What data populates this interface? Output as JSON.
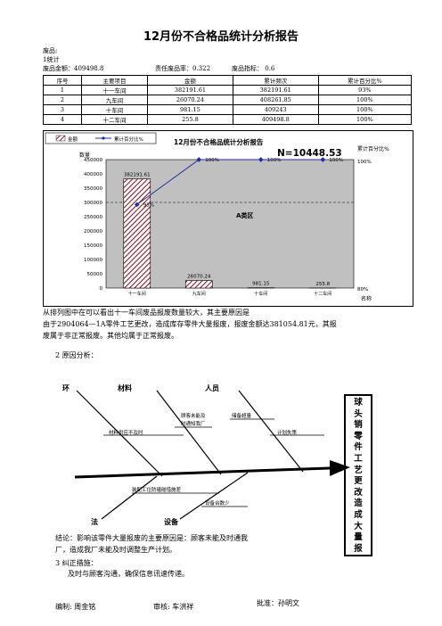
{
  "title": "12月份不合格品统计分析报告",
  "meta": {
    "line1": "废品:",
    "line2": "1统计",
    "total": "废品金额：409498.8",
    "rate": "责任废品率：0.322",
    "target": "废品指标： 0.6"
  },
  "table": {
    "headers": [
      "序号",
      "主要项目",
      "金额",
      "累计频次",
      "累计百分比%"
    ],
    "rows": [
      [
        "1",
        "十一车间",
        "382191.61",
        "382191.61",
        "93%"
      ],
      [
        "2",
        "九车间",
        "26070.24",
        "408261.85",
        "100%"
      ],
      [
        "3",
        "十车间",
        "981.15",
        "409243",
        "100%"
      ],
      [
        "4",
        "十二车间",
        "255.8",
        "409498.8",
        "100%"
      ]
    ]
  },
  "chart_data": {
    "type": "bar",
    "title": "12月份不合格品统计分析报告",
    "n_label": "N=10448.53",
    "legend": [
      "金额",
      "累计百分比%"
    ],
    "ylabel": "数量",
    "y2label": "累计百分比%",
    "xlabel": "名称",
    "zone_label": "A类区",
    "categories": [
      "十一车间",
      "九车间",
      "十车间",
      "十二车间"
    ],
    "ylim": [
      0,
      450000
    ],
    "yticks": [
      0,
      50000,
      100000,
      150000,
      200000,
      250000,
      300000,
      350000,
      400000,
      450000
    ],
    "y2ticks": [
      "80%",
      "100%"
    ],
    "series": [
      {
        "name": "金额",
        "values": [
          382191.61,
          26070.24,
          981.15,
          255.8
        ],
        "labels": [
          "382191.61",
          "26070.24",
          "981.15",
          "255.8"
        ]
      },
      {
        "name": "累计百分比%",
        "values": [
          93,
          100,
          100,
          100
        ],
        "labels": [
          "93%",
          "100%",
          "100%",
          "100%"
        ]
      }
    ],
    "dashed_ref": 300000
  },
  "analysis": {
    "line1": "从排列图中在可以看出十一车间废品报废数量较大，其主要原因是",
    "line2": "由于2904064—1A零件工艺更改，造成库存零件大量报废，报废金额达381054.81元，其报",
    "line3": "废属于非正常报废。其他均属于正常报废。",
    "section2": "2  原因分析："
  },
  "fishbone": {
    "environment": "环",
    "material": "材料",
    "people": "人员",
    "method": "法",
    "equipment": "设备",
    "cause_supply": "材料供应不及时",
    "cause_notify1": "顾客未能及",
    "cause_notify2": "时通知我厂",
    "cause_backlog": "储备超量",
    "cause_plan": "计划失策",
    "cause_impact": "装配工位防磕碰措施差",
    "cause_equip": "设备台数少",
    "effect": "球头销零件工艺更改造成大量报"
  },
  "conclusion": {
    "line1": "结论：影响该零件大量报废的主要原因是：顾客未能及时通我",
    "line2": "厂，造成我厂未能及时调整生产计划。",
    "section3": "3  纠正措施：",
    "measure": "及时与顾客沟通，确保信息讯速传递。"
  },
  "footer": {
    "editor": "编制: 周金铭",
    "reviewer": "审核: 车洪祥",
    "approver": "批准：孙明文"
  }
}
